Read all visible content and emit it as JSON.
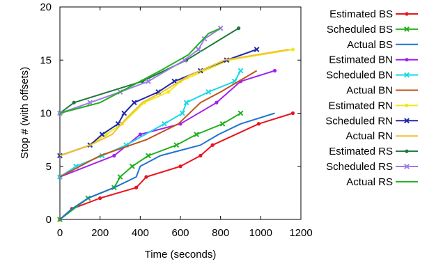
{
  "chart_data": {
    "type": "line",
    "title": "",
    "xlabel": "Time (seconds)",
    "ylabel": "Stop # (with offsets)",
    "xlim": [
      0,
      1200
    ],
    "ylim": [
      0,
      20
    ],
    "xticks": [
      "0",
      "200",
      "400",
      "600",
      "800",
      "1000",
      "1200"
    ],
    "yticks": [
      "0",
      "5",
      "10",
      "15",
      "20"
    ],
    "grid": false,
    "legend_position": "outside-right",
    "series": [
      {
        "name": "Estimated BS",
        "color": "#e8141c",
        "marker": "dot",
        "x": [
          0,
          60,
          200,
          380,
          430,
          600,
          700,
          760,
          990,
          1160
        ],
        "y": [
          0,
          1,
          2,
          3,
          4,
          5,
          6,
          7,
          9,
          10
        ]
      },
      {
        "name": "Scheduled BS",
        "color": "#22b01e",
        "marker": "x",
        "x": [
          0,
          140,
          270,
          300,
          360,
          440,
          580,
          680,
          810,
          900
        ],
        "y": [
          0,
          2,
          3,
          4,
          5,
          6,
          7,
          8,
          9,
          10
        ]
      },
      {
        "name": "Actual BS",
        "color": "#1e73d0",
        "marker": "none",
        "x": [
          0,
          60,
          140,
          270,
          380,
          400,
          500,
          700,
          790,
          900,
          1070
        ],
        "y": [
          0,
          1,
          2,
          3,
          4,
          5,
          6,
          7,
          8,
          9,
          10
        ]
      },
      {
        "name": "Estimated BN",
        "color": "#a020f0",
        "marker": "dot",
        "x": [
          0,
          270,
          400,
          600,
          780,
          900,
          1070
        ],
        "y": [
          4,
          6,
          8,
          9,
          11,
          13,
          14
        ]
      },
      {
        "name": "Scheduled BN",
        "color": "#19d8e6",
        "marker": "x",
        "x": [
          0,
          80,
          210,
          330,
          520,
          610,
          630,
          740,
          870,
          900
        ],
        "y": [
          4,
          5,
          6,
          7,
          9,
          10,
          11,
          12,
          13,
          14
        ]
      },
      {
        "name": "Actual BN",
        "color": "#c0521a",
        "marker": "none",
        "x": [
          0,
          200,
          430,
          590,
          700,
          800,
          980
        ],
        "y": [
          4,
          6,
          7.5,
          9,
          11,
          12,
          14
        ]
      },
      {
        "name": "Estimated RN",
        "color": "#f0e81e",
        "marker": "dot",
        "x": [
          0,
          150,
          230,
          310,
          420,
          540,
          600,
          840,
          1160
        ],
        "y": [
          6,
          7,
          8,
          9,
          11,
          12,
          13,
          15,
          16
        ]
      },
      {
        "name": "Scheduled RN",
        "color": "#1e2aa8",
        "marker": "x",
        "x": [
          0,
          150,
          210,
          290,
          320,
          370,
          490,
          570,
          700,
          830,
          980
        ],
        "y": [
          6,
          7,
          8,
          9,
          10,
          11,
          12,
          13,
          14,
          15,
          16
        ]
      },
      {
        "name": "Actual RN",
        "color": "#f2c030",
        "marker": "none",
        "x": [
          0,
          150,
          260,
          330,
          410,
          510,
          640,
          820,
          1140
        ],
        "y": [
          6,
          7,
          8,
          9.5,
          11,
          12,
          13.5,
          15,
          16
        ]
      },
      {
        "name": "Estimated RS",
        "color": "#1e7a3a",
        "marker": "dot",
        "x": [
          0,
          70,
          410,
          630,
          890
        ],
        "y": [
          10,
          11,
          13,
          15,
          18
        ]
      },
      {
        "name": "Scheduled RS",
        "color": "#a07ce8",
        "marker": "x",
        "x": [
          0,
          150,
          300,
          440,
          620,
          690,
          720,
          800
        ],
        "y": [
          10,
          11,
          12,
          13,
          15,
          16,
          17,
          18
        ]
      },
      {
        "name": "Actual RS",
        "color": "#22b01e",
        "marker": "none",
        "x": [
          0,
          200,
          400,
          500,
          640,
          740,
          800
        ],
        "y": [
          10,
          11,
          13,
          14,
          15.5,
          17.5,
          18
        ]
      }
    ]
  }
}
